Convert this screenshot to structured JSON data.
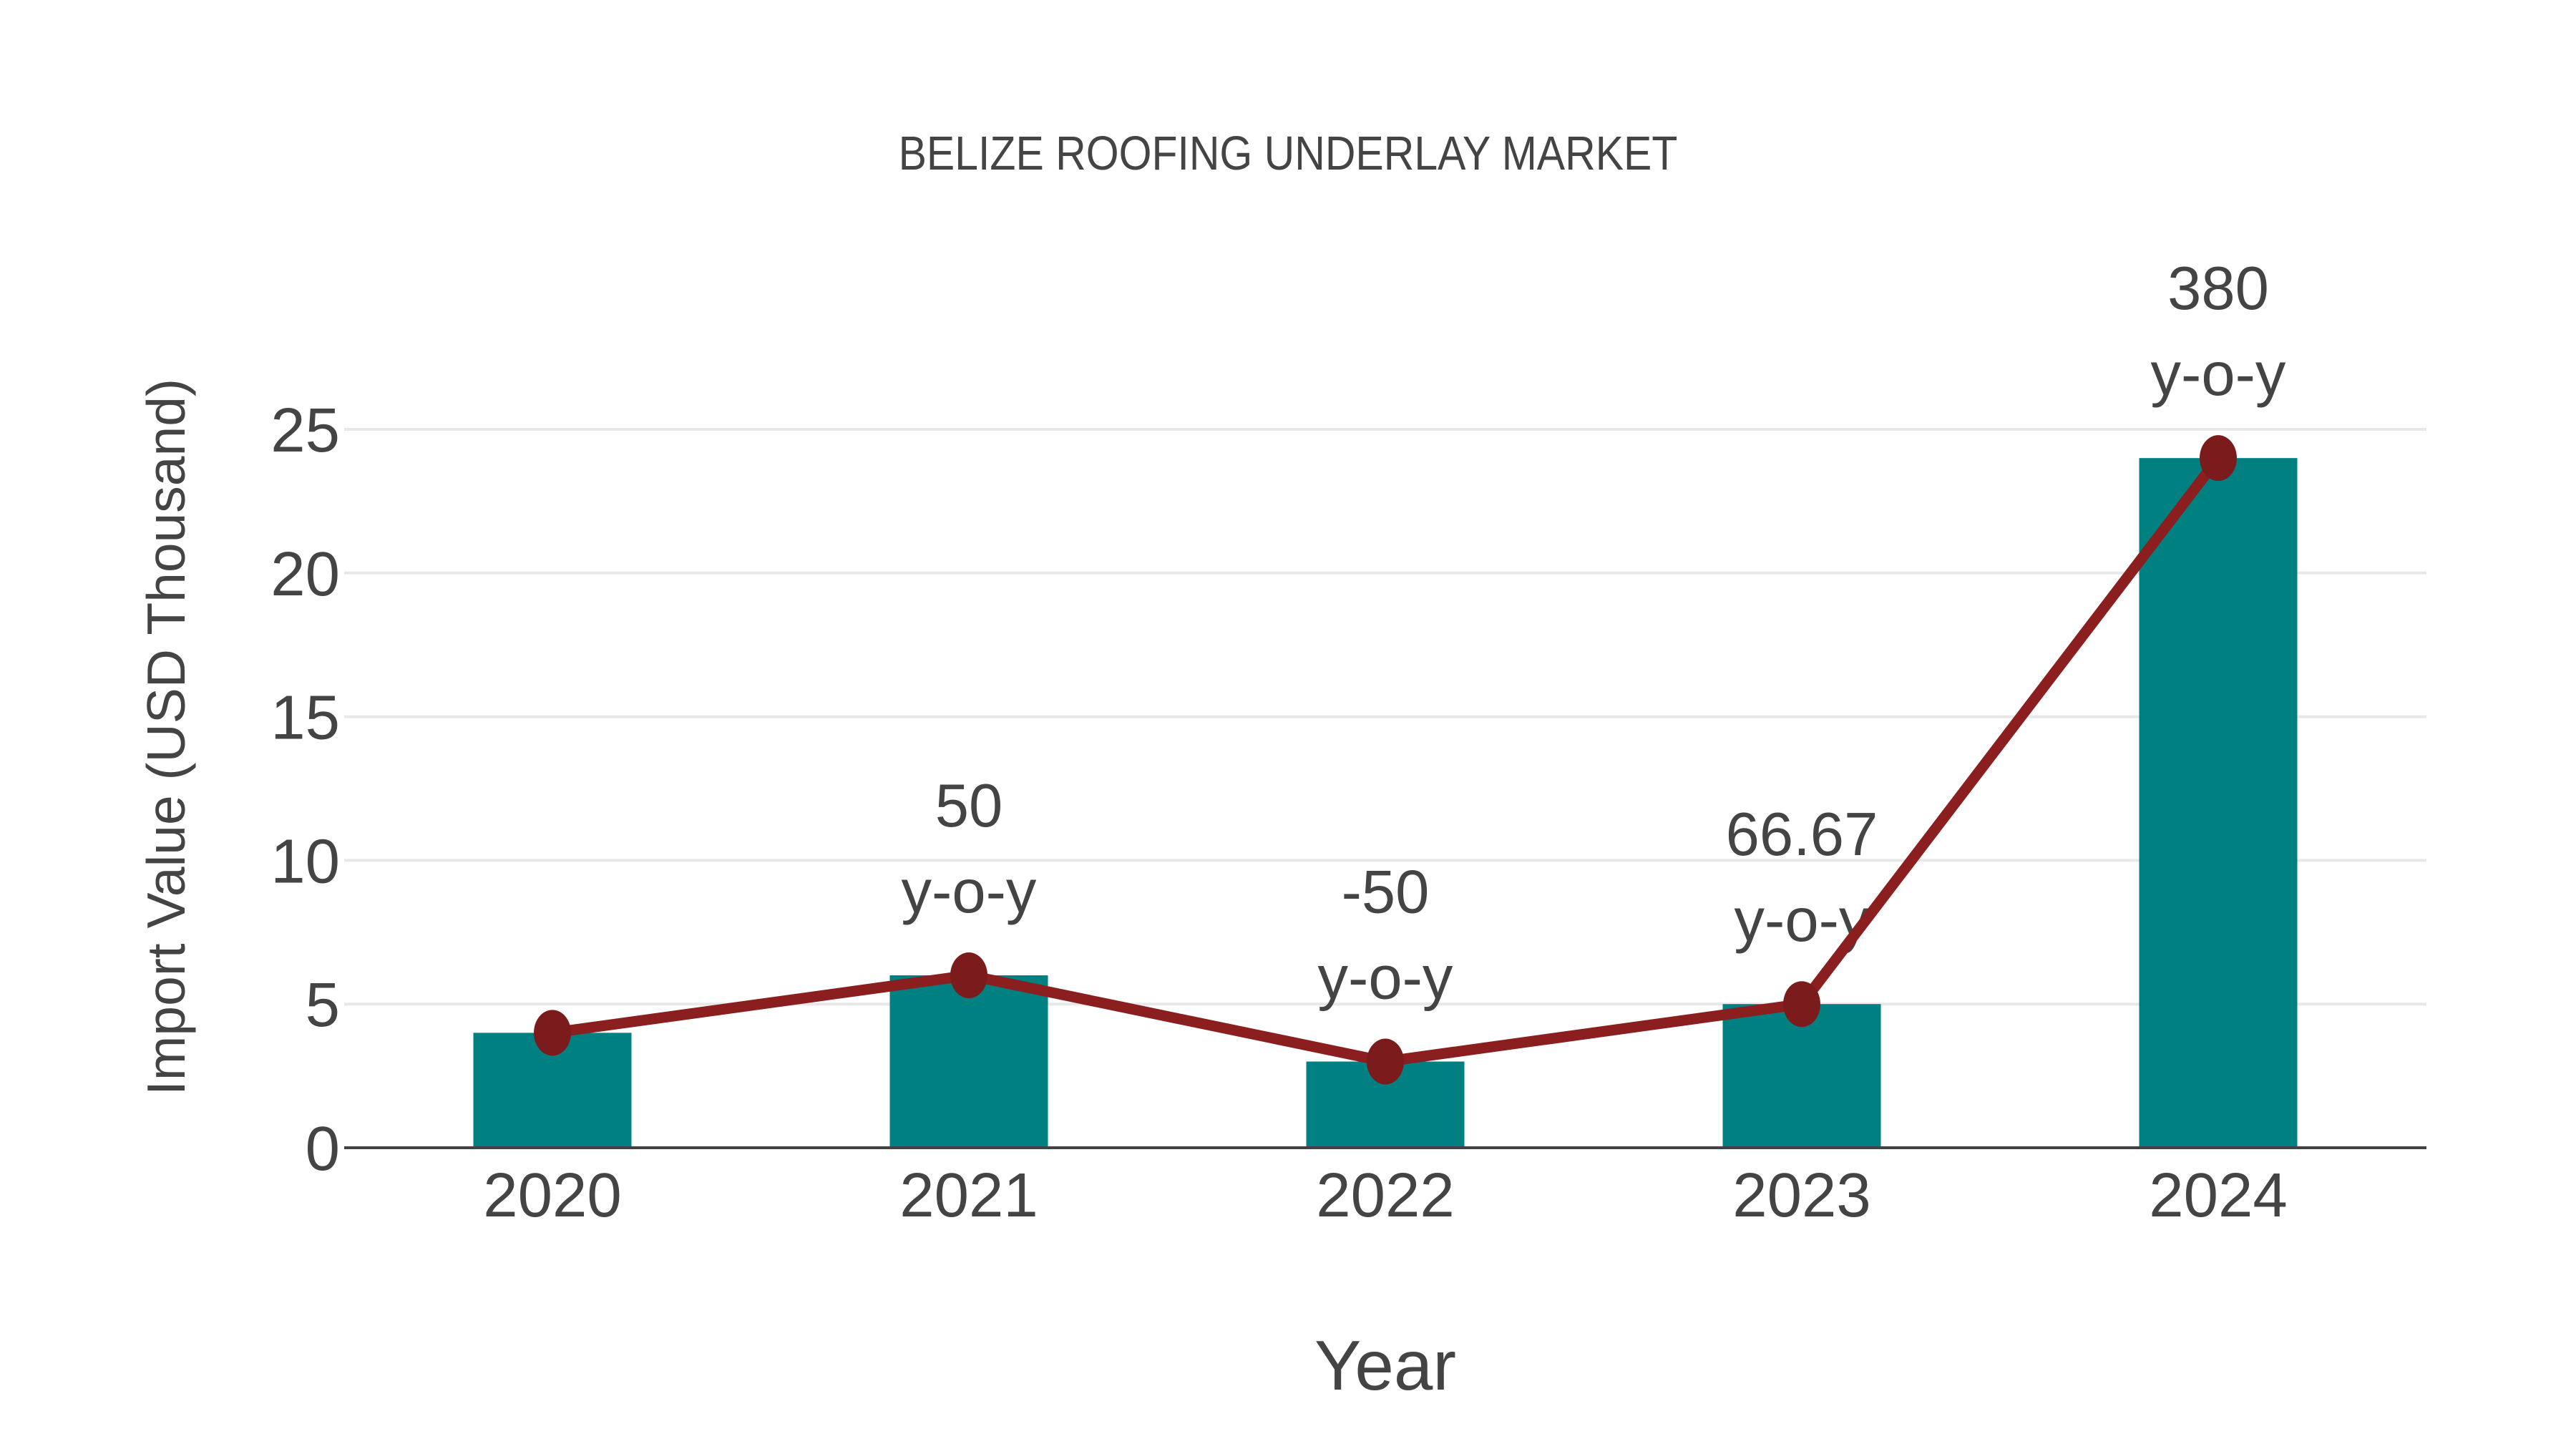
{
  "title": "BELIZE ROOFING UNDERLAY MARKET",
  "colors": {
    "bar": "#008080",
    "line": "#8B1E1E",
    "marker": "#7B1B1B",
    "grid": "#e8e8e8",
    "axis_line": "#424242",
    "text": "#444444",
    "background": "#ffffff"
  },
  "chart_data": {
    "type": "bar",
    "title": "BELIZE ROOFING UNDERLAY MARKET",
    "xlabel": "Year",
    "ylabel": "Import Value (USD Thousand)",
    "categories": [
      "2020",
      "2021",
      "2022",
      "2023",
      "2024"
    ],
    "series": [
      {
        "name": "Import Value bars",
        "type": "bar",
        "values": [
          4,
          6,
          3,
          5,
          24
        ]
      },
      {
        "name": "Import Value trend line",
        "type": "line",
        "values": [
          4,
          6,
          3,
          5,
          24
        ]
      }
    ],
    "annotations": [
      {
        "category": "2021",
        "value_text": "50",
        "label_text": "y-o-y"
      },
      {
        "category": "2022",
        "value_text": "-50",
        "label_text": "y-o-y"
      },
      {
        "category": "2023",
        "value_text": "66.67",
        "label_text": "y-o-y"
      },
      {
        "category": "2024",
        "value_text": "380",
        "label_text": "y-o-y"
      }
    ],
    "yticks": [
      0,
      5,
      10,
      15,
      20,
      25
    ],
    "ylim": [
      0,
      25
    ],
    "grid": true,
    "legend": false
  }
}
